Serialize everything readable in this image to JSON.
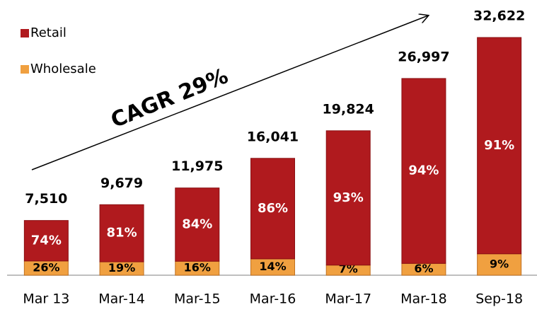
{
  "chart_data": {
    "type": "stacked-percent-bar",
    "categories": [
      "Mar 13",
      "Mar-14",
      "Mar-15",
      "Mar-16",
      "Mar-17",
      "Mar-18",
      "Sep-18"
    ],
    "totals": [
      7510,
      9679,
      11975,
      16041,
      19824,
      26997,
      32622
    ],
    "total_labels": [
      "7,510",
      "9,679",
      "11,975",
      "16,041",
      "19,824",
      "26,997",
      "32,622"
    ],
    "series": [
      {
        "name": "Wholesale",
        "color": "#f0a040",
        "values": [
          26,
          19,
          16,
          14,
          7,
          6,
          9
        ],
        "value_labels": [
          "26%",
          "19%",
          "16%",
          "14%",
          "7%",
          "6%",
          "9%"
        ]
      },
      {
        "name": "Retail",
        "color": "#b01a1e",
        "values": [
          74,
          81,
          84,
          86,
          93,
          94,
          91
        ],
        "value_labels": [
          "74%",
          "81%",
          "84%",
          "86%",
          "93%",
          "94%",
          "91%"
        ]
      }
    ],
    "annotation": "CAGR 29%"
  }
}
